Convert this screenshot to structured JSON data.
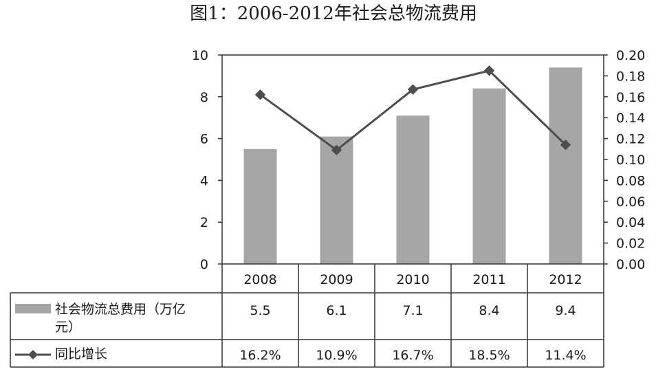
{
  "chart_data": {
    "type": "bar",
    "title": "图1：2006-2012年社会总物流费用",
    "categories": [
      "2008",
      "2009",
      "2010",
      "2011",
      "2012"
    ],
    "series": [
      {
        "name": "社会物流总费用（万亿元）",
        "type": "bar",
        "axis": "left",
        "values": [
          5.5,
          6.1,
          7.1,
          8.4,
          9.4
        ],
        "labels": [
          "5.5",
          "6.1",
          "7.1",
          "8.4",
          "9.4"
        ],
        "color": "#a6a6a6"
      },
      {
        "name": "同比增长",
        "type": "line",
        "axis": "right",
        "values": [
          0.162,
          0.109,
          0.167,
          0.185,
          0.114
        ],
        "labels": [
          "16.2%",
          "10.9%",
          "16.7%",
          "18.5%",
          "11.4%"
        ],
        "color": "#4d4d4d"
      }
    ],
    "left_axis": {
      "ylim": [
        0,
        10
      ],
      "ticks": [
        "0",
        "2",
        "4",
        "6",
        "8",
        "10"
      ]
    },
    "right_axis": {
      "ylim": [
        0,
        0.2
      ],
      "ticks": [
        "0.00",
        "0.02",
        "0.04",
        "0.06",
        "0.08",
        "0.10",
        "0.12",
        "0.14",
        "0.16",
        "0.18",
        "0.20"
      ]
    },
    "data_table": true,
    "grid": false
  }
}
